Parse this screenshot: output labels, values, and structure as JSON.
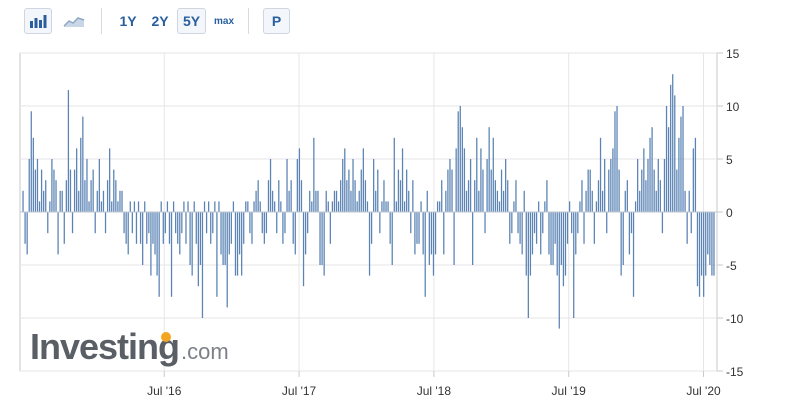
{
  "toolbar": {
    "bar_chart_icon": "bar-chart-icon",
    "area_chart_icon": "area-chart-icon",
    "range_1y": "1Y",
    "range_2y": "2Y",
    "range_5y": "5Y",
    "range_max": "max",
    "p_label": "P",
    "selected_range": "5Y"
  },
  "logo": {
    "word": "Investing",
    "suffix": ".com"
  },
  "colors": {
    "bar": "#5b84b5",
    "grid": "#e6e6e6",
    "axis": "#c9c9c9",
    "toolbar_accent": "#2a5f9e",
    "logo_dot": "#f2a520"
  },
  "chart_data": {
    "type": "bar",
    "title": "",
    "xlabel": "",
    "ylabel": "",
    "ylim": [
      -15,
      15
    ],
    "yticks": [
      -15,
      -10,
      -5,
      0,
      5,
      10,
      15
    ],
    "xticks": [
      {
        "label": "Jul '16",
        "value": 2016.5
      },
      {
        "label": "Jul '17",
        "value": 2017.5
      },
      {
        "label": "Jul '18",
        "value": 2018.5
      },
      {
        "label": "Jul '19",
        "value": 2019.5
      },
      {
        "label": "Jul '20",
        "value": 2020.5
      }
    ],
    "x_start": 2015.43,
    "x_end": 2020.6,
    "grid": true,
    "legend": "none",
    "values": [
      2,
      -3,
      -4,
      5,
      9.5,
      7,
      4,
      5,
      1,
      4,
      2,
      3,
      -2,
      1,
      5,
      4,
      3,
      -4,
      2,
      2,
      -3,
      3,
      11.5,
      4,
      -2,
      4,
      6,
      2,
      7,
      9,
      3,
      5,
      1,
      3,
      4,
      -2,
      2,
      5,
      1,
      2,
      -2,
      3,
      6,
      1,
      4,
      3,
      1,
      2,
      2,
      -2,
      -3,
      -4,
      1,
      -2,
      1,
      -3,
      1,
      -3,
      -5,
      1,
      -3,
      -2,
      -6,
      -3,
      -4,
      -6,
      -8,
      1,
      -3,
      -2,
      1,
      -3,
      -8,
      1,
      -2,
      -3,
      -4,
      -2,
      1,
      -3,
      1,
      -5,
      -6,
      1,
      -3,
      -7,
      -5,
      -10,
      1,
      -2,
      1,
      -3,
      -2,
      1,
      -8,
      1,
      -4,
      -5,
      -5,
      -9,
      -4,
      -3,
      1,
      -6,
      -6,
      -4,
      -6,
      -3,
      1,
      1,
      -2,
      -3,
      1,
      2,
      3,
      1,
      -2,
      -3,
      -2,
      3,
      5,
      2,
      1,
      -2,
      3,
      1,
      -3,
      -2,
      5,
      2,
      3,
      -3,
      -4,
      5,
      6,
      3,
      -7,
      -4,
      -2,
      2,
      1,
      7,
      2,
      2,
      -5,
      -5,
      -6,
      2,
      1,
      -3,
      1,
      2,
      2,
      1,
      3,
      5,
      6,
      3,
      4,
      2,
      5,
      3,
      1,
      2,
      4,
      6,
      3,
      1,
      -6,
      -3,
      5,
      2,
      4,
      -2,
      1,
      3,
      1,
      1,
      -3,
      -5,
      7,
      1,
      4,
      3,
      6,
      1,
      4,
      2,
      -2,
      3,
      -4,
      -3,
      -3,
      1,
      -4,
      -8,
      2,
      -5,
      -4,
      -6,
      -4,
      1,
      1,
      3,
      -4,
      2,
      4,
      5,
      4,
      -5,
      6,
      9.5,
      10,
      8,
      6,
      2,
      3,
      5,
      -5,
      3,
      7,
      2,
      6,
      4,
      -2,
      5,
      8,
      4,
      7,
      3,
      2,
      1,
      4,
      2,
      5,
      3,
      -3,
      -2,
      1,
      3,
      -2,
      -3,
      -4,
      2,
      -6,
      -10,
      -6,
      -4,
      -2,
      -3,
      1,
      -4,
      -2,
      1,
      3,
      -4,
      -5,
      -5,
      -3,
      -6,
      -11,
      -5,
      -7,
      -6,
      -3,
      1,
      -2,
      -10,
      -4,
      -2,
      1,
      3,
      -3,
      2,
      4,
      4,
      2,
      -3,
      1,
      3,
      7,
      2,
      5,
      -2,
      4,
      5,
      6,
      9.5,
      10,
      4,
      -6,
      -5,
      2,
      3,
      -4,
      -2,
      -8,
      1,
      5,
      2,
      4,
      6,
      3,
      5,
      7,
      8,
      4,
      2,
      5,
      3,
      -2,
      5,
      10,
      8,
      12,
      13,
      11,
      4,
      7,
      9,
      10,
      2,
      -3,
      2,
      -2,
      6,
      7,
      -7,
      -8,
      -6,
      -8,
      -6,
      -4,
      -5,
      -6,
      -6
    ]
  }
}
